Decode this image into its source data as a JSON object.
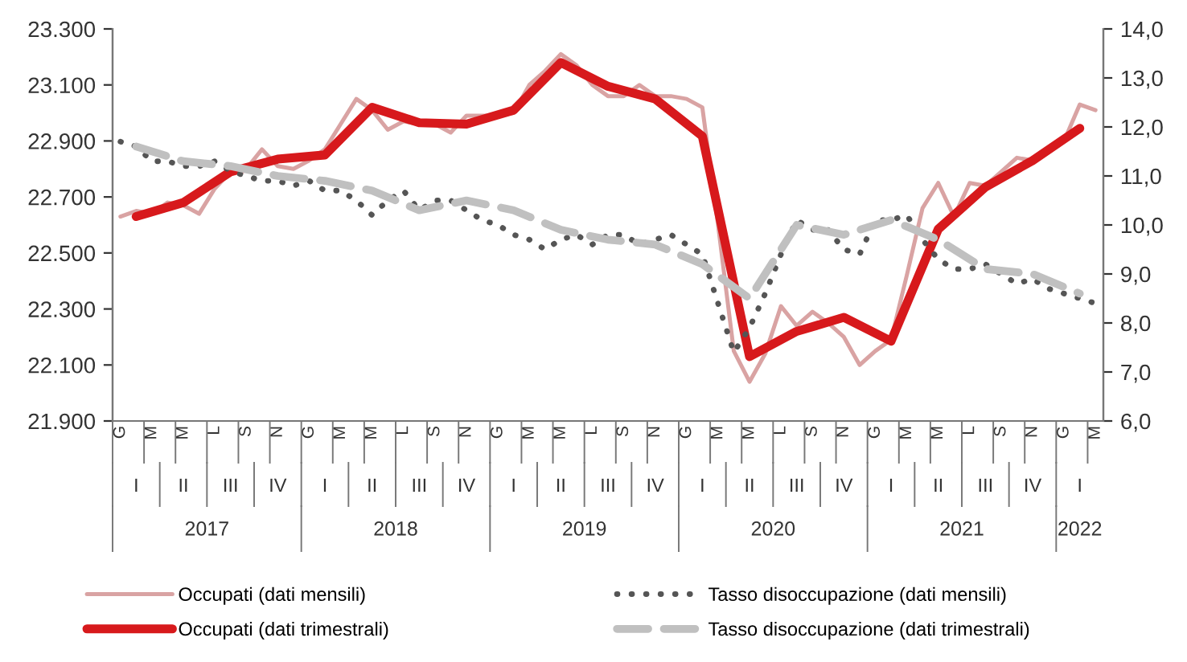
{
  "chart_data": {
    "type": "line",
    "categories": [
      "G",
      null,
      "M",
      null,
      "M",
      null,
      "L",
      null,
      "S",
      null,
      "N",
      null,
      "G",
      null,
      "M",
      null,
      "M",
      null,
      "L",
      null,
      "S",
      null,
      "N",
      null,
      "G",
      null,
      "M",
      null,
      "M",
      null,
      "L",
      null,
      "S",
      null,
      "N",
      null,
      "G",
      null,
      "M",
      null,
      "M",
      null,
      "L",
      null,
      "S",
      null,
      "N",
      null,
      "G",
      null,
      "M",
      null,
      "M",
      null,
      "L",
      null,
      "S",
      null,
      "N",
      null,
      "G",
      null,
      "M"
    ],
    "series": [
      {
        "name": "Occupati (dati mensili)",
        "color": "#d9a3a3",
        "line_style": "solid",
        "axis": "y",
        "values": [
          22630,
          22650,
          22640,
          22680,
          22670,
          22640,
          22730,
          22790,
          22800,
          22870,
          22810,
          22800,
          22830,
          22870,
          22960,
          23050,
          23010,
          22940,
          22970,
          22960,
          22960,
          22930,
          22990,
          22990,
          22990,
          23000,
          23100,
          23150,
          23210,
          23170,
          23100,
          23060,
          23060,
          23100,
          23060,
          23060,
          23050,
          23020,
          22600,
          22150,
          22040,
          22140,
          22310,
          22240,
          22290,
          22250,
          22200,
          22100,
          22150,
          22190,
          22420,
          22660,
          22750,
          22630,
          22750,
          22740,
          22790,
          22840,
          22830,
          22860,
          22900,
          23030,
          23010
        ]
      },
      {
        "name": "Occupati (dati trimestrali)",
        "color": "#d7191c",
        "line_style": "solid",
        "axis": "y",
        "values": [
          null,
          22630,
          null,
          null,
          22680,
          null,
          null,
          22790,
          null,
          null,
          22835,
          null,
          null,
          22850,
          null,
          null,
          23020,
          null,
          null,
          22965,
          null,
          null,
          22960,
          null,
          null,
          23010,
          null,
          null,
          23180,
          null,
          null,
          23095,
          null,
          null,
          23050,
          null,
          null,
          22917,
          null,
          null,
          22130,
          null,
          null,
          22220,
          null,
          null,
          22270,
          null,
          null,
          22185,
          null,
          null,
          22585,
          null,
          null,
          22735,
          null,
          null,
          22830,
          null,
          null,
          22945,
          null
        ]
      },
      {
        "name": "Tasso disoccupazione (dati mensili)",
        "color": "#555555",
        "line_style": "dotted",
        "axis": "y2",
        "values": [
          11.7,
          11.6,
          11.3,
          11.3,
          11.2,
          11.2,
          11.3,
          11.1,
          11.0,
          10.9,
          10.9,
          10.8,
          10.9,
          10.7,
          10.7,
          10.5,
          10.2,
          10.5,
          10.7,
          10.3,
          10.5,
          10.5,
          10.3,
          10.1,
          10.0,
          9.8,
          9.7,
          9.5,
          9.7,
          9.8,
          9.6,
          9.8,
          9.8,
          9.6,
          9.7,
          9.8,
          9.6,
          9.4,
          8.4,
          7.4,
          7.9,
          8.6,
          9.4,
          10.1,
          9.9,
          9.9,
          9.5,
          9.4,
          10.1,
          10.1,
          10.2,
          9.7,
          9.3,
          9.1,
          9.1,
          9.2,
          9.0,
          8.8,
          8.9,
          8.7,
          8.6,
          8.5,
          8.4
        ]
      },
      {
        "name": "Tasso disoccupazione (dati trimestrali)",
        "color": "#c0c0c0",
        "line_style": "dashed",
        "axis": "y2",
        "values": [
          null,
          11.6,
          null,
          null,
          11.3,
          null,
          null,
          11.2,
          null,
          null,
          11.0,
          null,
          null,
          10.9,
          null,
          null,
          10.7,
          null,
          null,
          10.3,
          null,
          null,
          10.5,
          null,
          null,
          10.3,
          null,
          null,
          9.9,
          null,
          null,
          9.7,
          null,
          null,
          9.6,
          null,
          null,
          9.2,
          null,
          null,
          8.5,
          null,
          null,
          10.0,
          null,
          null,
          9.8,
          null,
          null,
          10.1,
          null,
          null,
          9.7,
          null,
          null,
          9.1,
          null,
          null,
          9.0,
          null,
          null,
          8.6,
          null
        ]
      }
    ],
    "ylim": [
      21900,
      23300
    ],
    "yticks": [
      {
        "value": 21900,
        "label": "21.900"
      },
      {
        "value": 22100,
        "label": "22.100"
      },
      {
        "value": 22300,
        "label": "22.300"
      },
      {
        "value": 22500,
        "label": "22.500"
      },
      {
        "value": 22700,
        "label": "22.700"
      },
      {
        "value": 22900,
        "label": "22.900"
      },
      {
        "value": 23100,
        "label": "23.100"
      },
      {
        "value": 23300,
        "label": "23.300"
      }
    ],
    "y2lim": [
      6,
      14
    ],
    "y2ticks": [
      {
        "value": 6,
        "label": "6,0"
      },
      {
        "value": 7,
        "label": "7,0"
      },
      {
        "value": 8,
        "label": "8,0"
      },
      {
        "value": 9,
        "label": "9,0"
      },
      {
        "value": 10,
        "label": "10,0"
      },
      {
        "value": 11,
        "label": "11,0"
      },
      {
        "value": 12,
        "label": "12,0"
      },
      {
        "value": 13,
        "label": "13,0"
      },
      {
        "value": 14,
        "label": "14,0"
      }
    ],
    "annotations": [
      "I",
      "II",
      "III",
      "IV",
      "I",
      "II",
      "III",
      "IV",
      "I",
      "II",
      "III",
      "IV",
      "I",
      "II",
      "III",
      "IV",
      "I",
      "II",
      "III",
      "IV",
      "I",
      "2017",
      "2018",
      "2019",
      "2020",
      "2021",
      "2022"
    ],
    "grid": false,
    "marker": "none",
    "legend": "bottom"
  }
}
